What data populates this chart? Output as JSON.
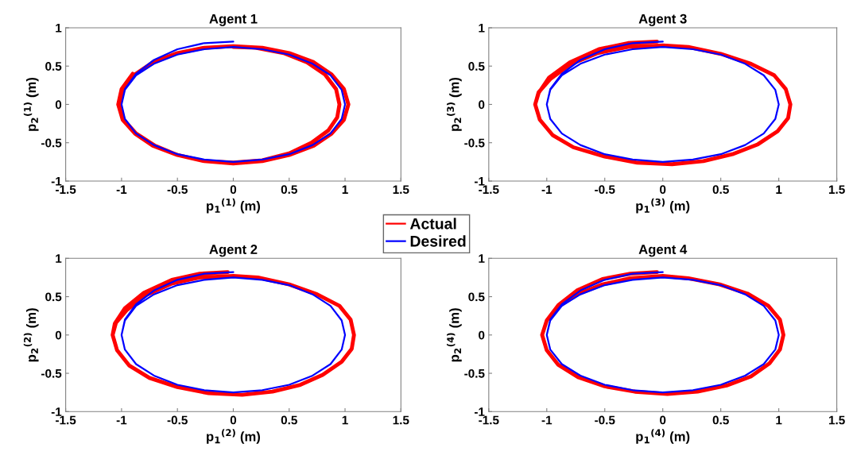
{
  "chart_data": [
    {
      "type": "line",
      "title": "Agent 1",
      "xlabel": "p$_{1}$$^{(1)}$ (m)",
      "ylabel": "p$_{2}$$^{(1)}$ (m)",
      "xlim": [
        -1.5,
        1.5
      ],
      "xticks": [
        -1.5,
        -1,
        -0.5,
        0,
        0.5,
        1,
        1.5
      ],
      "ylim": [
        -1,
        1
      ],
      "yticks": [
        -1,
        -0.5,
        0,
        0.5,
        1
      ],
      "grid": false,
      "legend": "bottom right",
      "series": [
        {
          "name": "Actual",
          "color": "#ff0000",
          "x": [
            -0.9,
            -1.0,
            -1.03,
            -0.99,
            -0.88,
            -0.72,
            -0.5,
            -0.26,
            0,
            0.26,
            0.5,
            0.72,
            0.88,
            0.99,
            1.03,
            0.99,
            0.88,
            0.72,
            0.5,
            0.26,
            0,
            -0.26,
            -0.5,
            -0.72,
            -0.88,
            -0.99,
            -1.02,
            -0.98,
            -0.87,
            -0.7,
            -0.5,
            -0.26,
            0,
            0.26,
            0.5,
            0.7,
            0.85,
            0.93,
            0.95,
            0.92,
            0.82,
            0.66,
            0.45,
            0.2,
            0
          ],
          "values": [
            0.4,
            0.2,
            0,
            -0.2,
            -0.38,
            -0.54,
            -0.66,
            -0.74,
            -0.77,
            -0.74,
            -0.66,
            -0.54,
            -0.38,
            -0.2,
            0,
            0.2,
            0.39,
            0.55,
            0.67,
            0.74,
            0.76,
            0.74,
            0.67,
            0.55,
            0.39,
            0.2,
            0,
            -0.2,
            -0.38,
            -0.54,
            -0.66,
            -0.74,
            -0.76,
            -0.73,
            -0.64,
            -0.5,
            -0.34,
            -0.17,
            0,
            0.2,
            0.39,
            0.55,
            0.67,
            0.74,
            0.75
          ]
        },
        {
          "name": "Desired",
          "color": "#0000ff",
          "x": [
            0,
            -0.26,
            -0.5,
            -0.71,
            -0.87,
            -0.97,
            -1,
            -0.97,
            -0.87,
            -0.71,
            -0.5,
            -0.26,
            0,
            0.26,
            0.5,
            0.71,
            0.87,
            0.97,
            1,
            0.97,
            0.87,
            0.71,
            0.5,
            0.26,
            0,
            -0.26,
            -0.5,
            -0.71,
            -0.87,
            -0.97,
            -1
          ],
          "values": [
            0.82,
            0.8,
            0.72,
            0.58,
            0.4,
            0.2,
            0,
            -0.19,
            -0.38,
            -0.53,
            -0.65,
            -0.72,
            -0.75,
            -0.72,
            -0.65,
            -0.53,
            -0.38,
            -0.19,
            0,
            0.19,
            0.38,
            0.53,
            0.65,
            0.72,
            0.75,
            0.72,
            0.65,
            0.53,
            0.38,
            0.19,
            0
          ]
        }
      ]
    },
    {
      "type": "line",
      "title": "Agent 3",
      "xlabel": "p$_{1}$$^{(3)}$ (m)",
      "ylabel": "p$_{2}$$^{(3)}$ (m)",
      "xlim": [
        -1.5,
        1.5
      ],
      "xticks": [
        -1.5,
        -1,
        -0.5,
        0,
        0.5,
        1,
        1.5
      ],
      "ylim": [
        -1,
        1
      ],
      "yticks": [
        -1,
        -0.5,
        0,
        0.5,
        1
      ],
      "grid": false,
      "series": [
        {
          "color": "#ff0000",
          "x": [
            -0.05,
            -0.3,
            -0.55,
            -0.8,
            -0.98,
            -1.07,
            -1.1,
            -1.06,
            -0.95,
            -0.77,
            -0.5,
            -0.22,
            0.08,
            0.35,
            0.6,
            0.82,
            0.99,
            1.08,
            1.1,
            1.06,
            0.96,
            0.76,
            0.5,
            0.22,
            0,
            -0.3,
            -0.56,
            -0.8,
            -0.97,
            -1.07,
            -1.1
          ],
          "values": [
            0.82,
            0.8,
            0.72,
            0.55,
            0.35,
            0.15,
            0,
            -0.2,
            -0.4,
            -0.56,
            -0.68,
            -0.76,
            -0.78,
            -0.74,
            -0.65,
            -0.52,
            -0.35,
            -0.18,
            0,
            0.2,
            0.38,
            0.53,
            0.66,
            0.75,
            0.77,
            0.75,
            0.67,
            0.52,
            0.33,
            0.16,
            0
          ]
        },
        {
          "color": "#0000ff",
          "x": [
            0,
            -0.26,
            -0.5,
            -0.71,
            -0.87,
            -0.97,
            -1,
            -0.97,
            -0.87,
            -0.71,
            -0.5,
            -0.26,
            0,
            0.26,
            0.5,
            0.71,
            0.87,
            0.97,
            1,
            0.97,
            0.87,
            0.71,
            0.5,
            0.26,
            0,
            -0.26,
            -0.5,
            -0.71,
            -0.87,
            -0.97,
            -1
          ],
          "values": [
            0.82,
            0.8,
            0.72,
            0.58,
            0.4,
            0.2,
            0,
            -0.19,
            -0.38,
            -0.53,
            -0.65,
            -0.72,
            -0.75,
            -0.72,
            -0.65,
            -0.53,
            -0.38,
            -0.19,
            0,
            0.19,
            0.38,
            0.53,
            0.65,
            0.72,
            0.75,
            0.72,
            0.65,
            0.53,
            0.38,
            0.19,
            0
          ]
        }
      ]
    },
    {
      "type": "line",
      "title": "Agent 2",
      "xlabel": "p$_{1}$$^{(2)}$ (m)",
      "ylabel": "p$_{2}$$^{(2)}$ (m)",
      "xlim": [
        -1.5,
        1.5
      ],
      "xticks": [
        -1.5,
        -1,
        -0.5,
        0,
        0.5,
        1,
        1.5
      ],
      "ylim": [
        -1,
        1
      ],
      "yticks": [
        -1,
        -0.5,
        0,
        0.5,
        1
      ],
      "grid": false,
      "series": [
        {
          "color": "#ff0000",
          "x": [
            -0.05,
            -0.3,
            -0.55,
            -0.8,
            -0.97,
            -1.06,
            -1.08,
            -1.04,
            -0.93,
            -0.75,
            -0.5,
            -0.22,
            0.08,
            0.35,
            0.6,
            0.8,
            0.97,
            1.06,
            1.08,
            1.05,
            0.95,
            0.75,
            0.5,
            0.22,
            0,
            -0.3,
            -0.55,
            -0.78,
            -0.95,
            -1.05,
            -1.08
          ],
          "values": [
            0.82,
            0.8,
            0.72,
            0.55,
            0.35,
            0.15,
            0,
            -0.2,
            -0.4,
            -0.56,
            -0.68,
            -0.76,
            -0.78,
            -0.74,
            -0.65,
            -0.52,
            -0.35,
            -0.18,
            0,
            0.2,
            0.38,
            0.53,
            0.66,
            0.75,
            0.77,
            0.75,
            0.67,
            0.52,
            0.33,
            0.16,
            0
          ]
        },
        {
          "color": "#0000ff",
          "x": [
            0,
            -0.26,
            -0.5,
            -0.71,
            -0.87,
            -0.97,
            -1,
            -0.97,
            -0.87,
            -0.71,
            -0.5,
            -0.26,
            0,
            0.26,
            0.5,
            0.71,
            0.87,
            0.97,
            1,
            0.97,
            0.87,
            0.71,
            0.5,
            0.26,
            0,
            -0.26,
            -0.5,
            -0.71,
            -0.87,
            -0.97,
            -1
          ],
          "values": [
            0.82,
            0.8,
            0.72,
            0.58,
            0.4,
            0.2,
            0,
            -0.19,
            -0.38,
            -0.53,
            -0.65,
            -0.72,
            -0.75,
            -0.72,
            -0.65,
            -0.53,
            -0.38,
            -0.19,
            0,
            0.19,
            0.38,
            0.53,
            0.65,
            0.72,
            0.75,
            0.72,
            0.65,
            0.53,
            0.38,
            0.19,
            0
          ]
        }
      ]
    },
    {
      "type": "line",
      "title": "Agent 4",
      "xlabel": "p$_{1}$$^{(4)}$ (m)",
      "ylabel": "p$_{2}$$^{(4)}$ (m)",
      "xlim": [
        -1.5,
        1.5
      ],
      "xticks": [
        -1.5,
        -1,
        -0.5,
        0,
        0.5,
        1,
        1.5
      ],
      "ylim": [
        -1,
        1
      ],
      "yticks": [
        -1,
        -0.5,
        0,
        0.5,
        1
      ],
      "grid": false,
      "series": [
        {
          "color": "#ff0000",
          "x": [
            -0.05,
            -0.28,
            -0.52,
            -0.74,
            -0.9,
            -1.0,
            -1.04,
            -1.0,
            -0.9,
            -0.73,
            -0.5,
            -0.24,
            0.04,
            0.3,
            0.55,
            0.76,
            0.92,
            1.01,
            1.04,
            1.01,
            0.91,
            0.73,
            0.49,
            0.22,
            0,
            -0.28,
            -0.52,
            -0.74,
            -0.9,
            -1.0,
            -1.04
          ],
          "values": [
            0.82,
            0.8,
            0.73,
            0.58,
            0.39,
            0.19,
            0,
            -0.2,
            -0.39,
            -0.55,
            -0.67,
            -0.74,
            -0.77,
            -0.74,
            -0.66,
            -0.54,
            -0.37,
            -0.19,
            0,
            0.2,
            0.38,
            0.54,
            0.66,
            0.74,
            0.77,
            0.74,
            0.66,
            0.53,
            0.37,
            0.19,
            0
          ]
        },
        {
          "color": "#0000ff",
          "x": [
            0,
            -0.26,
            -0.5,
            -0.71,
            -0.87,
            -0.97,
            -1,
            -0.97,
            -0.87,
            -0.71,
            -0.5,
            -0.26,
            0,
            0.26,
            0.5,
            0.71,
            0.87,
            0.97,
            1,
            0.97,
            0.87,
            0.71,
            0.5,
            0.26,
            0,
            -0.26,
            -0.5,
            -0.71,
            -0.87,
            -0.97,
            -1
          ],
          "values": [
            0.82,
            0.8,
            0.72,
            0.58,
            0.4,
            0.2,
            0,
            -0.19,
            -0.38,
            -0.53,
            -0.65,
            -0.72,
            -0.75,
            -0.72,
            -0.65,
            -0.53,
            -0.38,
            -0.19,
            0,
            0.19,
            0.38,
            0.53,
            0.65,
            0.72,
            0.75,
            0.72,
            0.65,
            0.53,
            0.38,
            0.19,
            0
          ]
        }
      ]
    }
  ]
}
